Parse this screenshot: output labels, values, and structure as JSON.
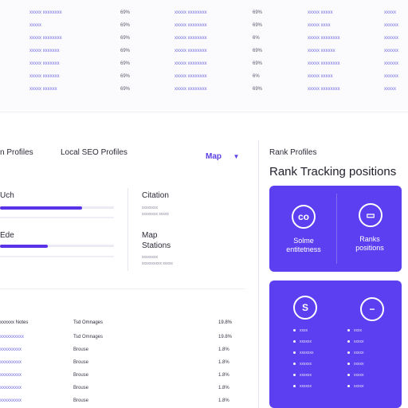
{
  "top_table": {
    "rows": [
      {
        "name": "xxxxx xxxxxxxx",
        "pct1": "69%",
        "col3": "xxxxx xxxxxxxx",
        "pct2": "69%",
        "col5": "xxxxx xxxxx",
        "col6": "xxxxx"
      },
      {
        "name": "xxxxx",
        "pct1": "69%",
        "col3": "xxxxx xxxxxxxx",
        "pct2": "69%",
        "col5": "xxxxx xxxx",
        "col6": "xxxxxx"
      },
      {
        "name": "xxxxx xxxxxxxx",
        "pct1": "69%",
        "col3": "xxxxx xxxxxxxx",
        "pct2": "6%",
        "col5": "xxxxx xxxxxxxx",
        "col6": "xxxxxx"
      },
      {
        "name": "xxxxx xxxxxxx",
        "pct1": "69%",
        "col3": "xxxxx xxxxxxxx",
        "pct2": "69%",
        "col5": "xxxxx xxxxxx",
        "col6": "xxxxxx"
      },
      {
        "name": "xxxxx xxxxxxx",
        "pct1": "69%",
        "col3": "xxxxx xxxxxxxx",
        "pct2": "69%",
        "col5": "xxxxx xxxxxxxx",
        "col6": "xxxxxx"
      },
      {
        "name": "xxxxx xxxxxxx",
        "pct1": "69%",
        "col3": "xxxxx xxxxxxxx",
        "pct2": "6%",
        "col5": "xxxxx xxxxx",
        "col6": "xxxxxx"
      },
      {
        "name": "xxxxx xxxxxx",
        "pct1": "69%",
        "col3": "xxxxx xxxxxxxx",
        "pct2": "69%",
        "col5": "xxxxx xxxxxxxx",
        "col6": "xxxxx"
      }
    ]
  },
  "tabs": {
    "tab1": "n Profiles",
    "tab2": "Local SEO Profiles",
    "dropdown": "Map",
    "right_label": "Rank Profiles"
  },
  "left_panel": {
    "metric1_label": "Uch",
    "metric1_fill": 0.72,
    "metric2_label": "Ede",
    "metric2_fill": 0.42,
    "citation_title": "Citation",
    "citation_sub1": "xxxxxxxx",
    "citation_sub2": "xxxxxxxx xxxxx",
    "map_title_line1": "Map",
    "map_title_line2": "Stations",
    "map_sub1": "xxxxxxxx",
    "map_sub2": "xxxxxxxxxx xxxxx"
  },
  "right_panel": {
    "heading": "Rank Tracking positions",
    "card1": {
      "left_icon": "co",
      "left_text_line1": "Solme",
      "left_text_line2": "entitetness",
      "right_text_line1": "Ranks",
      "right_text_line2": "positions"
    },
    "card2": {
      "left_icon": "S",
      "rows": [
        {
          "a": "xxxx",
          "b": "xxxx"
        },
        {
          "a": "xxxxxx",
          "b": "xxxxx"
        },
        {
          "a": "xxxxxxx",
          "b": "xxxxx"
        },
        {
          "a": "xxxxxx",
          "b": "xxxxx"
        },
        {
          "a": "xxxxxx",
          "b": "xxxxx"
        },
        {
          "a": "xxxxxx",
          "b": "xxxxx"
        }
      ]
    }
  },
  "bottom_table": {
    "header": {
      "col1": "xxxxxx Notes",
      "col2": "Tsd Omnages",
      "col3": "19.8%"
    },
    "rows": [
      {
        "col1": "xxxxxxxxxx",
        "col2": "Tsd Omnages",
        "col3": "19.8%"
      },
      {
        "col1": "xxxxxxxxx",
        "col2": "Brouse",
        "col3": "1.8%"
      },
      {
        "col1": "xxxxxxxxx",
        "col2": "Brouse",
        "col3": "1.8%"
      },
      {
        "col1": "xxxxxxxxx",
        "col2": "Brouse",
        "col3": "1.8%"
      },
      {
        "col1": "xxxxxxxxx",
        "col2": "Brouse",
        "col3": "1.8%"
      },
      {
        "col1": "xxxxxxxxx",
        "col2": "Brouse",
        "col3": "1.8%"
      }
    ]
  },
  "colors": {
    "accent": "#5b3ff0",
    "bar": "#5a33e8"
  }
}
